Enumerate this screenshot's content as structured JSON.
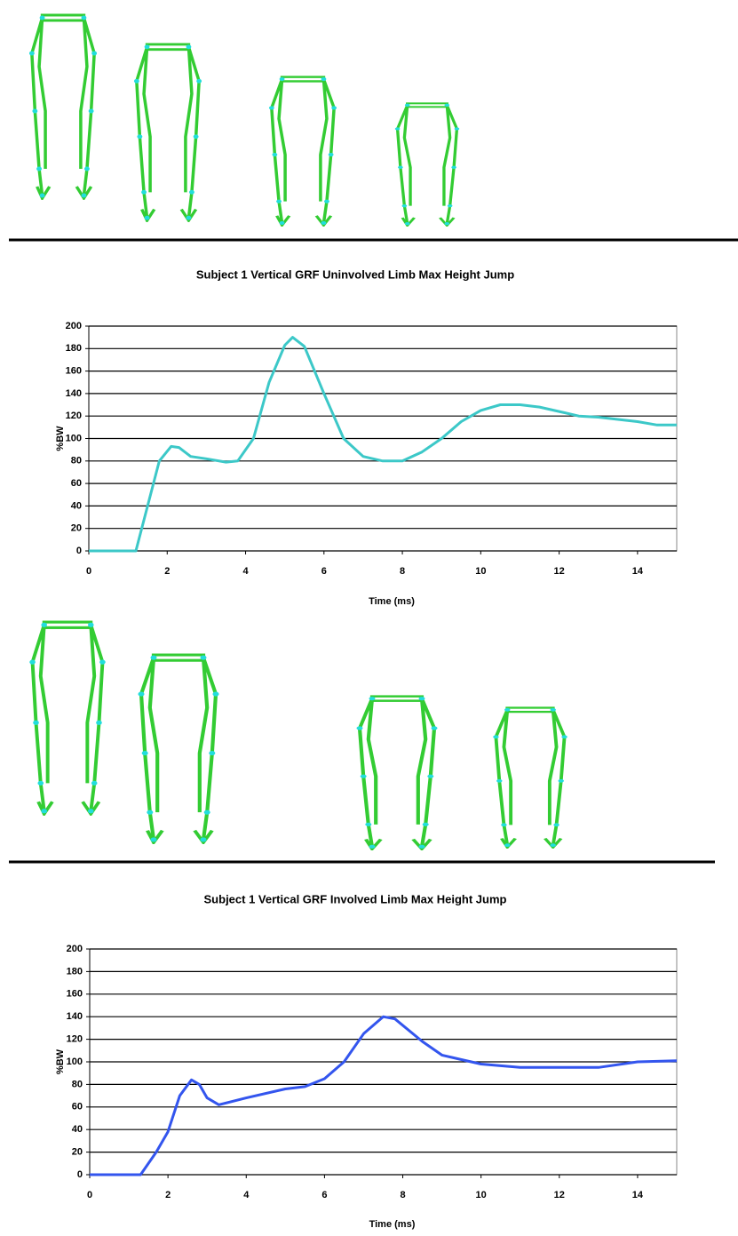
{
  "chart_data": [
    {
      "type": "line",
      "title": "Subject 1 Vertical GRF Uninvolved Limb Max Height Jump",
      "xlabel": "Time (ms)",
      "ylabel": "%BW",
      "color": "#3cc8c8",
      "x": [
        0,
        0.8,
        1.2,
        1.5,
        1.8,
        2.1,
        2.3,
        2.6,
        3,
        3.5,
        3.8,
        4.2,
        4.6,
        5,
        5.2,
        5.5,
        6,
        6.5,
        7,
        7.5,
        8,
        8.5,
        9,
        9.5,
        10,
        10.5,
        11,
        11.5,
        12,
        12.5,
        13,
        13.5,
        14,
        14.5,
        15
      ],
      "values": [
        0,
        0,
        0,
        40,
        80,
        93,
        92,
        84,
        82,
        79,
        80,
        100,
        150,
        183,
        190,
        182,
        140,
        100,
        84,
        80,
        80,
        88,
        100,
        115,
        125,
        130,
        130,
        128,
        124,
        120,
        119,
        117,
        115,
        112,
        112
      ],
      "xlim": [
        0,
        15
      ],
      "ylim": [
        0,
        200
      ],
      "xticks": [
        0,
        2,
        4,
        6,
        8,
        10,
        12,
        14
      ],
      "yticks": [
        0,
        20,
        40,
        60,
        80,
        100,
        120,
        140,
        160,
        180,
        200
      ],
      "grid": true
    },
    {
      "type": "line",
      "title": "Subject 1 Vertical GRF Involved Limb Max Height Jump",
      "xlabel": "Time (ms)",
      "ylabel": "%BW",
      "color": "#3355ee",
      "x": [
        0,
        1.3,
        1.7,
        2,
        2.3,
        2.6,
        2.8,
        3,
        3.3,
        4,
        5,
        5.5,
        6,
        6.5,
        7,
        7.5,
        7.8,
        8.5,
        9,
        9.5,
        10,
        11,
        12,
        13,
        14,
        15
      ],
      "values": [
        0,
        0,
        20,
        38,
        70,
        84,
        80,
        68,
        62,
        68,
        76,
        78,
        85,
        100,
        125,
        140,
        138,
        118,
        106,
        102,
        98,
        95,
        95,
        95,
        100,
        101
      ],
      "xlim": [
        0,
        15
      ],
      "ylim": [
        0,
        200
      ],
      "xticks": [
        0,
        2,
        4,
        6,
        8,
        10,
        12,
        14
      ],
      "yticks": [
        0,
        20,
        40,
        60,
        80,
        100,
        120,
        140,
        160,
        180,
        200
      ],
      "grid": true
    }
  ]
}
